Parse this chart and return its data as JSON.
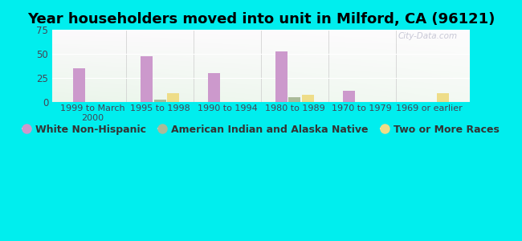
{
  "title": "Year householders moved into unit in Milford, CA (96121)",
  "categories": [
    "1999 to March\n2000",
    "1995 to 1998",
    "1990 to 1994",
    "1980 to 1989",
    "1970 to 1979",
    "1969 or earlier"
  ],
  "series": {
    "White Non-Hispanic": [
      35,
      48,
      30,
      53,
      12,
      0
    ],
    "American Indian and Alaska Native": [
      0,
      3,
      0,
      5,
      0,
      0
    ],
    "Two or More Races": [
      0,
      9,
      0,
      8,
      0,
      9
    ]
  },
  "colors": {
    "White Non-Hispanic": "#cc99cc",
    "American Indian and Alaska Native": "#aabb99",
    "Two or More Races": "#eedd88"
  },
  "ylim": [
    0,
    75
  ],
  "yticks": [
    0,
    25,
    50,
    75
  ],
  "background_color": "#00eeee",
  "bar_width": 0.18,
  "watermark": "City-Data.com",
  "title_fontsize": 13,
  "legend_fontsize": 9
}
